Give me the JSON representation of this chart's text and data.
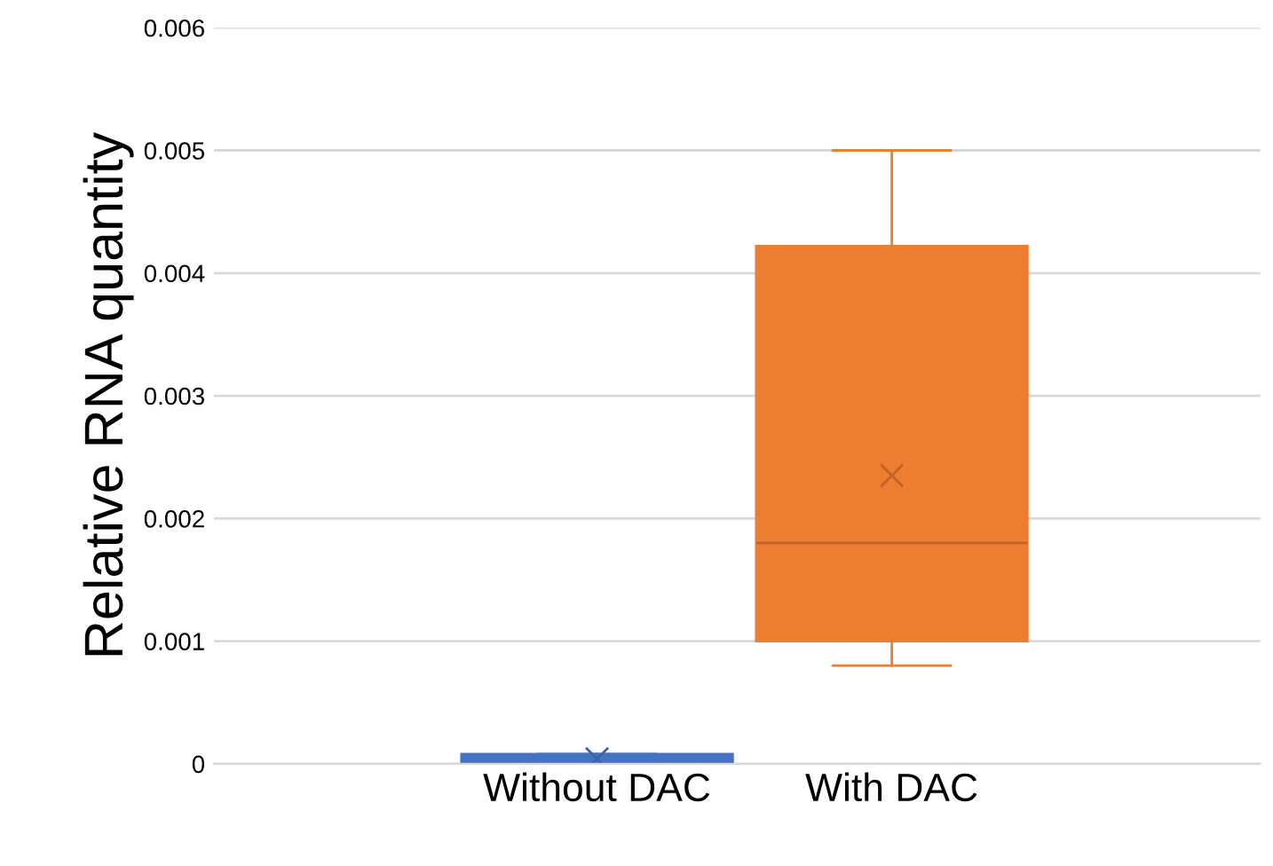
{
  "chart_data": {
    "type": "box",
    "ylabel": "Relative RNA quantity",
    "categories": [
      "Without DAC",
      "With DAC"
    ],
    "colors": [
      "#4472c4",
      "#ed7d31"
    ],
    "boxes": [
      {
        "low": 0,
        "q1": 0,
        "median": 4e-05,
        "q3": 8e-05,
        "high": 8e-05,
        "mean": 4e-05
      },
      {
        "low": 0.0008,
        "q1": 0.001,
        "median": 0.0018,
        "q3": 0.00422,
        "high": 0.005,
        "mean": 0.00235
      }
    ],
    "ylim": [
      0,
      0.006
    ],
    "yticks": [
      0,
      0.001,
      0.002,
      0.003,
      0.004,
      0.005,
      0.006
    ],
    "grid": "y",
    "marker": "cross",
    "legend": false
  }
}
